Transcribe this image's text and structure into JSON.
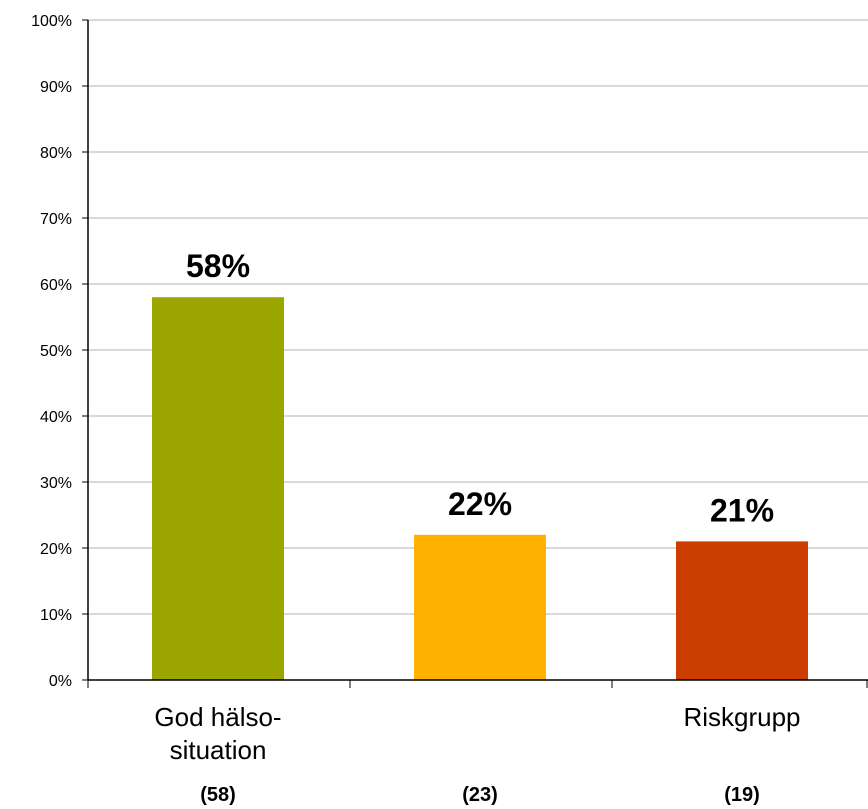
{
  "chart_data": {
    "type": "bar",
    "categories": [
      [
        "God hälso-",
        "situation"
      ],
      [],
      [
        "Riskgrupp"
      ]
    ],
    "values": [
      58,
      22,
      21
    ],
    "value_labels": [
      "58%",
      "22%",
      "21%"
    ],
    "counts": [
      "(58)",
      "(23)",
      "(19)"
    ],
    "colors": [
      "#9aa500",
      "#ffb100",
      "#cc3d00"
    ],
    "ylim": [
      0,
      100
    ],
    "yticks": [
      "0%",
      "10%",
      "20%",
      "30%",
      "40%",
      "50%",
      "60%",
      "70%",
      "80%",
      "90%",
      "100%"
    ],
    "grid": true,
    "title": "",
    "xlabel": "",
    "ylabel": ""
  }
}
